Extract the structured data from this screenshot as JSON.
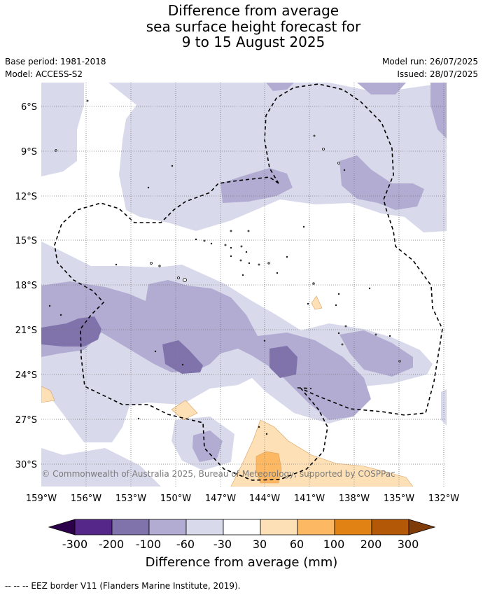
{
  "title": {
    "line1": "Difference from average",
    "line2": "sea surface height forecast for",
    "line3": "9 to 15 August 2025"
  },
  "meta": {
    "base_period": "Base period: 1981-2018",
    "model": "Model: ACCESS-S2",
    "model_run": "Model run: 26/07/2025",
    "issued": "Issued: 28/07/2025"
  },
  "map": {
    "lon_range": [
      -159,
      -132
    ],
    "lat_range": [
      -5,
      -32
    ],
    "x_ticks": [
      "159°W",
      "156°W",
      "153°W",
      "150°W",
      "147°W",
      "144°W",
      "141°W",
      "138°W",
      "135°W",
      "132°W"
    ],
    "y_ticks": [
      "6°S",
      "9°S",
      "12°S",
      "15°S",
      "18°S",
      "21°S",
      "24°S",
      "27°S",
      "30°S"
    ],
    "grid": true,
    "copyright": "© Commonwealth of Australia 2025, Bureau of Meteorology, supported by COSPPac"
  },
  "colorbar": {
    "label": "Difference from average (mm)",
    "ticks": [
      "-300",
      "-200",
      "-100",
      "-60",
      "-30",
      "30",
      "60",
      "100",
      "200",
      "300"
    ],
    "colors": [
      "#2d004b",
      "#542788",
      "#8073ac",
      "#b2abd2",
      "#d8daeb",
      "#ffffff",
      "#fee0b6",
      "#fdb863",
      "#e08214",
      "#b35806",
      "#7f3b08"
    ]
  },
  "footnote": "-- -- -- EEZ border V11 (Flanders Marine Institute, 2019)."
}
